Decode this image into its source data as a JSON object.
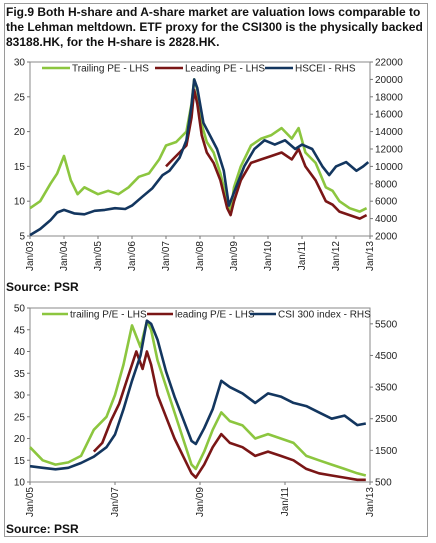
{
  "title": "Fig.9 Both H-share and A-share market are valuation lows comparable to the Lehman meltdown. ETF proxy for the CSI300 is the physically backed 83188.HK, for the H-share is 2828.HK.",
  "source_top": "Source: PSR",
  "source_bottom": "Source: PSR",
  "colors": {
    "trailing": "#8cc63f",
    "leading": "#7a1616",
    "index": "#13365f"
  },
  "chart_data": [
    {
      "type": "line",
      "x_ticks": [
        "Jan/03",
        "Jan/04",
        "Jan/05",
        "Jan/06",
        "Jan/07",
        "Jan/08",
        "Jan/09",
        "Jan/10",
        "Jan/11",
        "Jan/12",
        "Jan/13"
      ],
      "x_range": [
        2003.0,
        2013.0
      ],
      "ylim_left": [
        5,
        30
      ],
      "yticks_left": [
        5,
        10,
        15,
        20,
        25,
        30
      ],
      "ylim_right": [
        2000,
        22000
      ],
      "yticks_right": [
        2000,
        4000,
        6000,
        8000,
        10000,
        12000,
        14000,
        16000,
        18000,
        20000,
        22000
      ],
      "legend": [
        "Trailing PE - LHS",
        "Leading PE - LHS",
        "HSCEI - RHS"
      ],
      "series": [
        {
          "name": "Trailing PE - LHS",
          "axis": "left",
          "x": [
            2003.0,
            2003.3,
            2003.6,
            2003.8,
            2004.0,
            2004.2,
            2004.4,
            2004.6,
            2004.8,
            2005.0,
            2005.3,
            2005.6,
            2005.9,
            2006.2,
            2006.5,
            2006.8,
            2007.0,
            2007.3,
            2007.6,
            2007.75,
            2007.83,
            2007.92,
            2008.05,
            2008.2,
            2008.4,
            2008.6,
            2008.8,
            2008.9,
            2009.0,
            2009.2,
            2009.5,
            2009.8,
            2010.1,
            2010.4,
            2010.7,
            2010.9,
            2011.1,
            2011.4,
            2011.7,
            2011.9,
            2012.1,
            2012.4,
            2012.7,
            2012.9
          ],
          "y": [
            9,
            10,
            12.5,
            14,
            16.5,
            13,
            11,
            12,
            11.5,
            11,
            11.5,
            11,
            12,
            13.5,
            14,
            16,
            18,
            18.5,
            20,
            24,
            27.5,
            26,
            21,
            18.5,
            17,
            14,
            10,
            8.5,
            12,
            15,
            18,
            19,
            19.5,
            20.5,
            19,
            20.5,
            17,
            15.5,
            12,
            11.5,
            10,
            9,
            8.5,
            9
          ]
        },
        {
          "name": "Leading PE - LHS",
          "axis": "left",
          "x": [
            2007.0,
            2007.2,
            2007.4,
            2007.6,
            2007.75,
            2007.83,
            2007.92,
            2008.05,
            2008.2,
            2008.4,
            2008.6,
            2008.8,
            2008.9,
            2009.0,
            2009.2,
            2009.5,
            2009.8,
            2010.1,
            2010.4,
            2010.7,
            2010.9,
            2011.1,
            2011.4,
            2011.7,
            2011.9,
            2012.1,
            2012.4,
            2012.7,
            2012.9
          ],
          "y": [
            15,
            16,
            17,
            18,
            22,
            26,
            24,
            19.5,
            17,
            15.5,
            13,
            9,
            8,
            10,
            13,
            15.5,
            16,
            16.5,
            17,
            16,
            17.5,
            15,
            13,
            10,
            9.5,
            8.5,
            8,
            7.5,
            8
          ]
        },
        {
          "name": "HSCEI - RHS",
          "axis": "right",
          "x": [
            2003.0,
            2003.3,
            2003.6,
            2003.8,
            2004.0,
            2004.3,
            2004.6,
            2004.9,
            2005.2,
            2005.5,
            2005.8,
            2006.0,
            2006.3,
            2006.6,
            2006.9,
            2007.1,
            2007.4,
            2007.6,
            2007.75,
            2007.83,
            2007.92,
            2008.1,
            2008.3,
            2008.5,
            2008.7,
            2008.85,
            2009.0,
            2009.3,
            2009.6,
            2009.9,
            2010.2,
            2010.5,
            2010.8,
            2011.0,
            2011.3,
            2011.6,
            2011.8,
            2012.0,
            2012.3,
            2012.6,
            2012.8,
            2012.95
          ],
          "y": [
            2100,
            2800,
            3800,
            4700,
            5000,
            4600,
            4500,
            4900,
            5000,
            5200,
            5100,
            5500,
            6500,
            7500,
            9000,
            9500,
            11000,
            13000,
            17000,
            20000,
            19000,
            15000,
            13500,
            12000,
            9500,
            5500,
            7000,
            10000,
            12000,
            13000,
            12500,
            13000,
            12000,
            12500,
            12000,
            10000,
            9000,
            10000,
            10500,
            9500,
            10000,
            10500
          ]
        }
      ]
    },
    {
      "type": "line",
      "x_ticks": [
        "Jan/05",
        "Jan/07",
        "Jan/09",
        "Jan/11",
        "Jan/13"
      ],
      "x_range": [
        2005.0,
        2013.0
      ],
      "ylim_left": [
        10,
        50
      ],
      "yticks_left": [
        10,
        15,
        20,
        25,
        30,
        35,
        40,
        45,
        50
      ],
      "ylim_right": [
        500,
        6000
      ],
      "yticks_right": [
        500,
        1500,
        2500,
        3500,
        4500,
        5500
      ],
      "legend": [
        "trailing P/E - LHS",
        "leading P/E - LHS",
        "CSI 300 index - RHS"
      ],
      "series": [
        {
          "name": "trailing P/E - LHS",
          "axis": "left",
          "x": [
            2005.0,
            2005.3,
            2005.6,
            2005.9,
            2006.2,
            2006.5,
            2006.8,
            2007.0,
            2007.2,
            2007.4,
            2007.6,
            2007.75,
            2007.85,
            2008.0,
            2008.2,
            2008.4,
            2008.6,
            2008.8,
            2008.9,
            2009.1,
            2009.3,
            2009.5,
            2009.7,
            2010.0,
            2010.3,
            2010.6,
            2010.9,
            2011.2,
            2011.5,
            2011.8,
            2012.1,
            2012.4,
            2012.7,
            2012.9
          ],
          "y": [
            18,
            15,
            14,
            14.5,
            16,
            22,
            25,
            30,
            37,
            46,
            41,
            47,
            45,
            38,
            32,
            26,
            20,
            14,
            13,
            17,
            22,
            26,
            24,
            23,
            20,
            21,
            20,
            19,
            16,
            15,
            14,
            13,
            12,
            11.5
          ]
        },
        {
          "name": "leading P/E - LHS",
          "axis": "left",
          "x": [
            2006.5,
            2006.7,
            2006.9,
            2007.1,
            2007.3,
            2007.5,
            2007.65,
            2007.75,
            2007.85,
            2008.0,
            2008.2,
            2008.4,
            2008.6,
            2008.8,
            2008.9,
            2009.1,
            2009.3,
            2009.5,
            2009.7,
            2010.0,
            2010.3,
            2010.6,
            2010.9,
            2011.2,
            2011.5,
            2011.8,
            2012.1,
            2012.4,
            2012.7,
            2012.9
          ],
          "y": [
            17,
            19,
            24,
            28,
            34,
            40,
            36,
            40,
            37,
            30,
            25,
            20,
            16,
            12,
            11,
            14,
            18,
            21,
            19,
            18,
            16,
            17,
            16,
            15,
            13,
            12,
            11.5,
            11,
            10.5,
            10.5
          ]
        },
        {
          "name": "CSI 300 index - RHS",
          "axis": "right",
          "x": [
            2005.0,
            2005.3,
            2005.6,
            2005.9,
            2006.2,
            2006.5,
            2006.8,
            2007.0,
            2007.2,
            2007.4,
            2007.6,
            2007.75,
            2007.85,
            2008.0,
            2008.2,
            2008.4,
            2008.6,
            2008.8,
            2008.9,
            2009.1,
            2009.3,
            2009.5,
            2009.7,
            2010.0,
            2010.3,
            2010.6,
            2010.9,
            2011.2,
            2011.5,
            2011.8,
            2012.1,
            2012.4,
            2012.7,
            2012.9
          ],
          "y": [
            1000,
            950,
            900,
            950,
            1100,
            1300,
            1600,
            2000,
            2800,
            3700,
            4500,
            5600,
            5500,
            5000,
            4000,
            3200,
            2500,
            1800,
            1700,
            2200,
            2800,
            3700,
            3500,
            3300,
            3000,
            3300,
            3200,
            3000,
            2900,
            2700,
            2500,
            2600,
            2300,
            2350
          ]
        }
      ]
    }
  ]
}
